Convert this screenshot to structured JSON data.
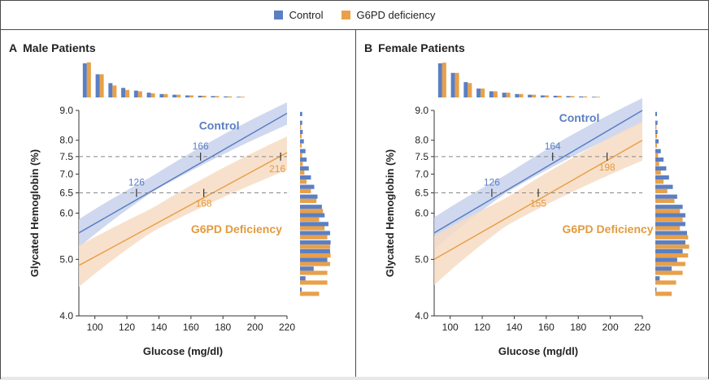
{
  "legend": {
    "items": [
      {
        "label": "Control",
        "color": "#5b7fc2"
      },
      {
        "label": "G6PD deficiency",
        "color": "#e8a04a"
      }
    ]
  },
  "colors": {
    "control": "#5b7fc2",
    "control_band": "#c7d1ec",
    "g6pd": "#e8a04a",
    "g6pd_band": "#f7dcc3",
    "control_label": "#5b7fc2",
    "g6pd_label": "#e39b3f",
    "dashed": "#888888"
  },
  "panels": [
    {
      "letter": "A",
      "title": "Male Patients"
    },
    {
      "letter": "B",
      "title": "Female Patients"
    }
  ],
  "chart_data": [
    {
      "type": "line",
      "title": "Male Patients",
      "xlabel": "Glucose (mg/dl)",
      "ylabel": "Glycated Hemoglobin (%)",
      "xlim": [
        90,
        220
      ],
      "ylim": [
        4.0,
        9.0
      ],
      "y_scale": "log",
      "x_ticks": [
        100,
        120,
        140,
        160,
        180,
        200,
        220
      ],
      "y_ticks": [
        4.0,
        5.0,
        6.0,
        6.5,
        7.0,
        7.5,
        8.0,
        9.0
      ],
      "reference_lines_y": [
        6.5,
        7.5
      ],
      "series": [
        {
          "name": "Control",
          "x": [
            90,
            220
          ],
          "y": [
            5.55,
            8.9
          ],
          "band_halfwidth_pct": 0.35
        },
        {
          "name": "G6PD Deficiency",
          "x": [
            90,
            220
          ],
          "y": [
            4.88,
            7.62
          ],
          "band_halfwidth_pct": 0.45
        }
      ],
      "annotations": [
        {
          "series": "Control",
          "x": 126,
          "y": 6.5,
          "label": "126",
          "label_pos": "above"
        },
        {
          "series": "Control",
          "x": 166,
          "y": 7.5,
          "label": "166",
          "label_pos": "above"
        },
        {
          "series": "G6PD Deficiency",
          "x": 168,
          "y": 6.5,
          "label": "168",
          "label_pos": "below"
        },
        {
          "series": "G6PD Deficiency",
          "x": 216,
          "y": 7.5,
          "label": "216",
          "label_pos": "below-left"
        }
      ],
      "series_labels": [
        {
          "series": "Control",
          "text": "Control",
          "x": 165,
          "y": 8.35
        },
        {
          "series": "G6PD Deficiency",
          "text": "G6PD Deficiency",
          "x": 160,
          "y": 5.55
        }
      ],
      "glucose_histogram": {
        "bins": [
          95,
          103,
          111,
          119,
          127,
          135,
          143,
          151,
          159,
          167,
          175,
          183,
          191
        ],
        "control": [
          1.0,
          0.68,
          0.42,
          0.28,
          0.2,
          0.14,
          0.1,
          0.08,
          0.06,
          0.05,
          0.04,
          0.03,
          0.02
        ],
        "g6pd": [
          1.03,
          0.68,
          0.35,
          0.22,
          0.18,
          0.12,
          0.1,
          0.08,
          0.06,
          0.05,
          0.04,
          0.03,
          0.02
        ]
      },
      "hba1c_histogram": {
        "bins": [
          8.8,
          8.5,
          8.2,
          7.9,
          7.6,
          7.35,
          7.1,
          6.85,
          6.6,
          6.35,
          6.1,
          5.9,
          5.7,
          5.5,
          5.3,
          5.12,
          4.95,
          4.78,
          4.6,
          4.4
        ],
        "control": [
          0.04,
          0.04,
          0.05,
          0.07,
          0.1,
          0.12,
          0.16,
          0.2,
          0.26,
          0.32,
          0.4,
          0.45,
          0.52,
          0.55,
          0.56,
          0.55,
          0.5,
          0.25,
          0.1,
          0.03
        ],
        "g6pd": [
          0.0,
          0.02,
          0.03,
          0.03,
          0.04,
          0.05,
          0.08,
          0.12,
          0.2,
          0.3,
          0.42,
          0.35,
          0.45,
          0.5,
          0.55,
          0.56,
          0.55,
          0.5,
          0.5,
          0.35
        ]
      }
    },
    {
      "type": "line",
      "title": "Female Patients",
      "xlabel": "Glucose (mg/dl)",
      "ylabel": "Glycated Hemoglobin (%)",
      "xlim": [
        90,
        220
      ],
      "ylim": [
        4.0,
        9.0
      ],
      "y_scale": "log",
      "x_ticks": [
        100,
        120,
        140,
        160,
        180,
        200,
        220
      ],
      "y_ticks": [
        4.0,
        5.0,
        6.0,
        6.5,
        7.0,
        7.5,
        8.0,
        9.0
      ],
      "reference_lines_y": [
        6.5,
        7.5
      ],
      "series": [
        {
          "name": "Control",
          "x": [
            90,
            220
          ],
          "y": [
            5.55,
            9.0
          ],
          "band_halfwidth_pct": 0.4
        },
        {
          "name": "G6PD Deficiency",
          "x": [
            90,
            220
          ],
          "y": [
            5.0,
            8.0
          ],
          "band_halfwidth_pct": 0.55
        }
      ],
      "annotations": [
        {
          "series": "Control",
          "x": 126,
          "y": 6.5,
          "label": "126",
          "label_pos": "above"
        },
        {
          "series": "Control",
          "x": 164,
          "y": 7.5,
          "label": "164",
          "label_pos": "above"
        },
        {
          "series": "G6PD Deficiency",
          "x": 155,
          "y": 6.5,
          "label": "155",
          "label_pos": "below"
        },
        {
          "series": "G6PD Deficiency",
          "x": 198,
          "y": 7.5,
          "label": "198",
          "label_pos": "below"
        }
      ],
      "series_labels": [
        {
          "series": "Control",
          "text": "Control",
          "x": 168,
          "y": 8.6
        },
        {
          "series": "G6PD Deficiency",
          "text": "G6PD Deficiency",
          "x": 170,
          "y": 5.55
        }
      ],
      "glucose_histogram": {
        "bins": [
          95,
          103,
          111,
          119,
          127,
          135,
          143,
          151,
          159,
          167,
          175,
          183,
          191
        ],
        "control": [
          1.0,
          0.72,
          0.45,
          0.26,
          0.18,
          0.14,
          0.1,
          0.08,
          0.06,
          0.05,
          0.04,
          0.03,
          0.02
        ],
        "g6pd": [
          1.02,
          0.72,
          0.42,
          0.26,
          0.18,
          0.14,
          0.1,
          0.08,
          0.06,
          0.05,
          0.04,
          0.03,
          0.02
        ]
      },
      "hba1c_histogram": {
        "bins": [
          8.8,
          8.5,
          8.2,
          7.9,
          7.6,
          7.35,
          7.1,
          6.85,
          6.6,
          6.35,
          6.1,
          5.9,
          5.7,
          5.5,
          5.3,
          5.12,
          4.95,
          4.78,
          4.6,
          4.4
        ],
        "control": [
          0.03,
          0.04,
          0.04,
          0.06,
          0.1,
          0.15,
          0.2,
          0.25,
          0.32,
          0.4,
          0.5,
          0.55,
          0.55,
          0.58,
          0.55,
          0.5,
          0.4,
          0.3,
          0.08,
          0.02
        ],
        "g6pd": [
          0.0,
          0.02,
          0.03,
          0.03,
          0.05,
          0.07,
          0.1,
          0.15,
          0.22,
          0.35,
          0.45,
          0.5,
          0.45,
          0.6,
          0.62,
          0.6,
          0.55,
          0.5,
          0.38,
          0.3
        ]
      }
    }
  ]
}
